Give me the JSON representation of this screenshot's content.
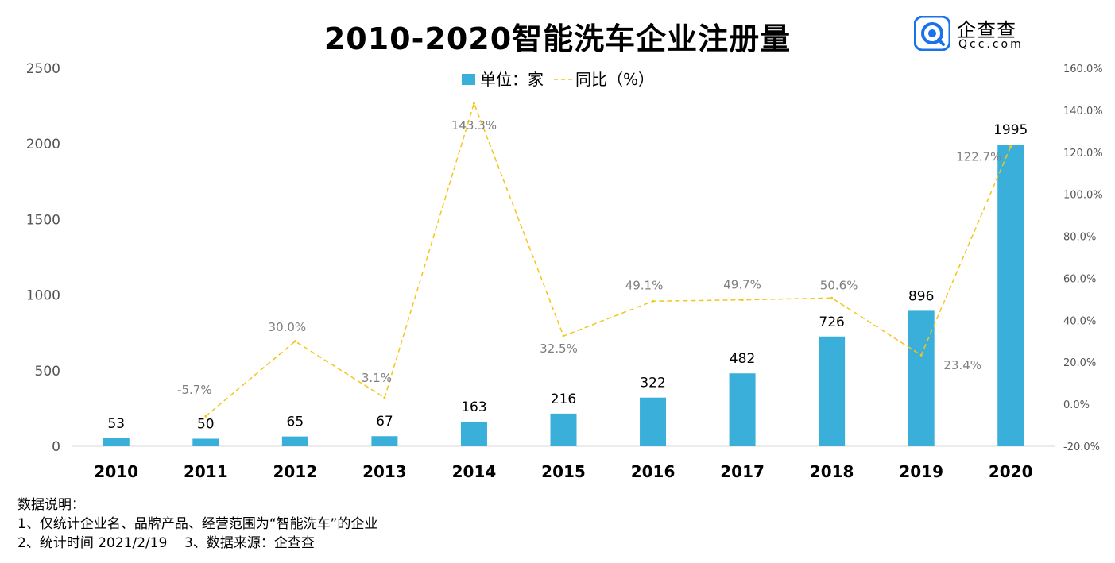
{
  "title": "2010-2020智能洗车企业注册量",
  "logo": {
    "brand": "企查查",
    "domain": "Qcc.com",
    "icon": "qcc-logo-icon",
    "color": "#1a73e8"
  },
  "chart_data": {
    "type": "bar",
    "categories": [
      "2010",
      "2011",
      "2012",
      "2013",
      "2014",
      "2015",
      "2016",
      "2017",
      "2018",
      "2019",
      "2020"
    ],
    "series": [
      {
        "name": "单位：家",
        "type": "bar",
        "axis": "left",
        "color": "#3aafd9",
        "values": [
          53,
          50,
          65,
          67,
          163,
          216,
          322,
          482,
          726,
          896,
          1995
        ],
        "labels": [
          "53",
          "50",
          "65",
          "67",
          "163",
          "216",
          "322",
          "482",
          "726",
          "896",
          "1995"
        ]
      },
      {
        "name": "同比（%）",
        "type": "line",
        "style": "dashed",
        "axis": "right",
        "color": "#f5c518",
        "x": [
          "2011",
          "2012",
          "2013",
          "2014",
          "2015",
          "2016",
          "2017",
          "2018",
          "2019",
          "2020"
        ],
        "values": [
          -5.7,
          30.0,
          3.1,
          143.3,
          32.5,
          49.1,
          49.7,
          50.6,
          23.4,
          122.7
        ],
        "labels": [
          "-5.7%",
          "30.0%",
          "3.1%",
          "143.3%",
          "32.5%",
          "49.1%",
          "49.7%",
          "50.6%",
          "23.4%",
          "122.7%"
        ]
      }
    ],
    "ylim": [
      0,
      2500
    ],
    "yticks": [
      "0",
      "500",
      "1000",
      "1500",
      "2000",
      "2500"
    ],
    "y2lim": [
      -20,
      160
    ],
    "y2ticks": [
      "-20.0%",
      "0.0%",
      "20.0%",
      "40.0%",
      "60.0%",
      "80.0%",
      "100.0%",
      "120.0%",
      "140.0%",
      "160.0%"
    ],
    "grid": false,
    "legend": "top-center"
  },
  "notes": {
    "heading": "数据说明：",
    "line1": "1、仅统计企业名、品牌产品、经营范围为“智能洗车”的企业",
    "line2": "2、统计时间 2021/2/19    3、数据来源：企查查"
  }
}
